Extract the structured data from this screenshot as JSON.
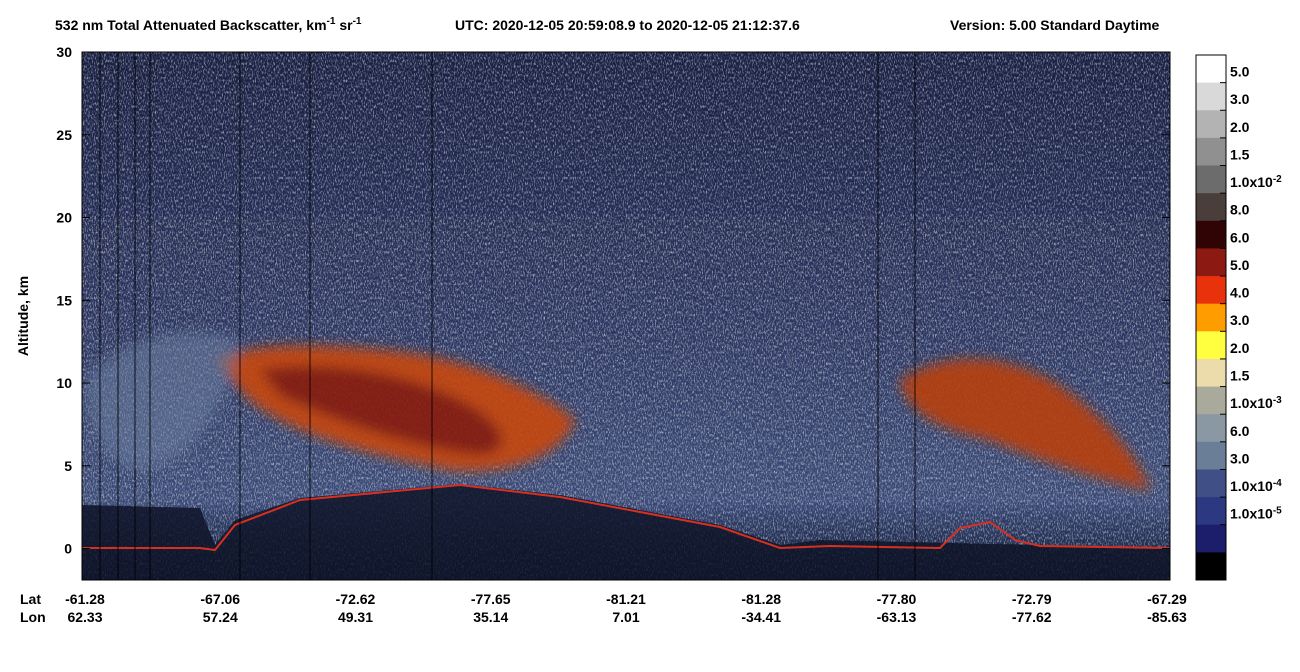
{
  "chart_data": {
    "type": "curtain",
    "title": {
      "parts": [
        "532 nm Total Attenuated Backscatter, km",
        "-1",
        " sr",
        "-1"
      ],
      "utc": "UTC:  2020-12-05 20:59:08.9  to  2020-12-05 21:12:37.6",
      "version": "Version: 5.00  Standard  Daytime"
    },
    "ylabel": "Altitude, km",
    "ylim": [
      -1.9,
      30
    ],
    "yticks": [
      0,
      5,
      10,
      15,
      20,
      25,
      30
    ],
    "x_rows": [
      {
        "name": "Lat",
        "labels": [
          "-61.28",
          "-67.06",
          "-72.62",
          "-77.65",
          "-81.21",
          "-81.28",
          "-77.80",
          "-72.79",
          "-67.29"
        ]
      },
      {
        "name": "Lon",
        "labels": [
          "62.33",
          "57.24",
          "49.31",
          "35.14",
          "7.01",
          "-34.41",
          "-63.13",
          "-77.62",
          "-85.63"
        ]
      }
    ],
    "colorbar": {
      "colors": [
        "#ffffff",
        "#d9d9d9",
        "#b3b3b3",
        "#909090",
        "#6c6c6c",
        "#4a3e3a",
        "#300404",
        "#8c1a12",
        "#e8320c",
        "#ff9c00",
        "#ffff40",
        "#ecdcac",
        "#aaaa9c",
        "#8a98a4",
        "#6a7e98",
        "#405086",
        "#2c3880",
        "#1c1e6c",
        "#000000"
      ],
      "labels": [
        {
          "text": "5.0"
        },
        {
          "text": "3.0"
        },
        {
          "text": "2.0"
        },
        {
          "text": "1.5"
        },
        {
          "text": "1.0x10",
          "sup": "-2"
        },
        {
          "text": "8.0"
        },
        {
          "text": "6.0"
        },
        {
          "text": "5.0"
        },
        {
          "text": "4.0"
        },
        {
          "text": "3.0"
        },
        {
          "text": "2.0"
        },
        {
          "text": "1.5"
        },
        {
          "text": "1.0x10",
          "sup": "-3"
        },
        {
          "text": "6.0"
        },
        {
          "text": "3.0"
        },
        {
          "text": "1.0x10",
          "sup": "-4"
        },
        {
          "text": "1.0x10",
          "sup": "-5"
        }
      ]
    }
  }
}
